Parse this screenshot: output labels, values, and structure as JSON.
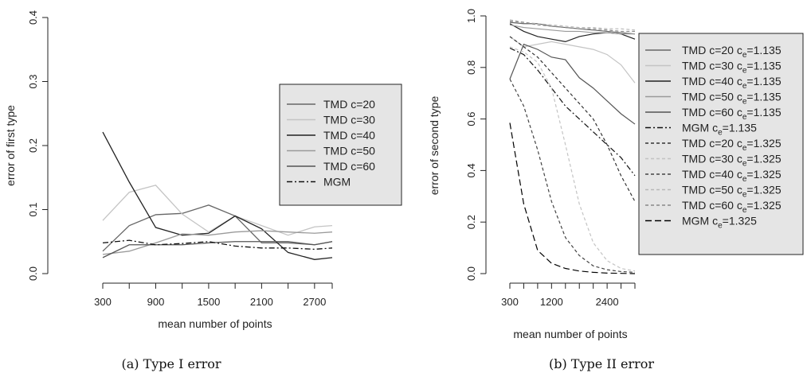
{
  "chart_data": [
    {
      "type": "line",
      "caption": "(a) Type I error",
      "title": "",
      "xlabel": "mean number of points",
      "ylabel": "error of first type",
      "xlim": [
        300,
        2900
      ],
      "ylim": [
        0,
        0.4
      ],
      "xticks": [
        300,
        600,
        900,
        1200,
        1500,
        1800,
        2100,
        2400,
        2700,
        3000
      ],
      "xtick_labels": [
        "300",
        "900",
        "1500",
        "2100",
        "2700"
      ],
      "yticks": [
        0.0,
        0.1,
        0.2,
        0.3,
        0.4
      ],
      "ytick_labels": [
        "0.0",
        "0.1",
        "0.2",
        "0.3",
        "0.4"
      ],
      "grid": false,
      "legend_position": "right",
      "x": [
        300,
        600,
        900,
        1200,
        1500,
        1800,
        2100,
        2400,
        2700,
        3000
      ],
      "series": [
        {
          "name": "TMD c=20",
          "color": "#666666",
          "dash": "",
          "values": [
            0.035,
            0.075,
            0.092,
            0.094,
            0.107,
            0.09,
            0.048,
            0.048,
            0.045,
            0.05
          ]
        },
        {
          "name": "TMD c=30",
          "color": "#c4c4c4",
          "dash": "",
          "values": [
            0.083,
            0.127,
            0.138,
            0.093,
            0.065,
            0.09,
            0.075,
            0.06,
            0.073,
            0.075
          ]
        },
        {
          "name": "TMD c=40",
          "color": "#222222",
          "dash": "",
          "values": [
            0.221,
            0.143,
            0.072,
            0.06,
            0.063,
            0.09,
            0.07,
            0.033,
            0.022,
            0.025
          ]
        },
        {
          "name": "TMD c=50",
          "color": "#9a9a9a",
          "dash": "",
          "values": [
            0.03,
            0.035,
            0.048,
            0.062,
            0.06,
            0.065,
            0.067,
            0.065,
            0.063,
            0.065
          ]
        },
        {
          "name": "TMD c=60",
          "color": "#555555",
          "dash": "",
          "values": [
            0.025,
            0.045,
            0.045,
            0.045,
            0.048,
            0.05,
            0.05,
            0.05,
            0.045,
            0.05
          ]
        },
        {
          "name": "MGM",
          "color": "#111111",
          "dash": "7,3,2,3",
          "values": [
            0.048,
            0.052,
            0.045,
            0.047,
            0.05,
            0.043,
            0.04,
            0.04,
            0.038,
            0.04
          ]
        }
      ]
    },
    {
      "type": "line",
      "caption": "(b) Type II error",
      "title": "",
      "xlabel": "mean number of points",
      "ylabel": "error of second type",
      "xlim": [
        300,
        3000
      ],
      "ylim": [
        0,
        1.0
      ],
      "xticks": [
        300,
        600,
        900,
        1200,
        1500,
        1800,
        2100,
        2400,
        2700,
        3000
      ],
      "xtick_labels": [
        "300",
        "1200",
        "2400"
      ],
      "xtick_label_values": [
        300,
        1200,
        2400
      ],
      "yticks": [
        0.0,
        0.2,
        0.4,
        0.6,
        0.8,
        1.0
      ],
      "ytick_labels": [
        "0.0",
        "0.2",
        "0.4",
        "0.6",
        "0.8",
        "1.0"
      ],
      "grid": false,
      "legend_position": "right",
      "x": [
        300,
        600,
        900,
        1200,
        1500,
        1800,
        2100,
        2400,
        2700,
        3000
      ],
      "series": [
        {
          "name_main": "TMD c=20 c",
          "name_sub": "e",
          "name_tail": "=1.135",
          "color": "#666666",
          "dash": "",
          "values": [
            0.975,
            0.97,
            0.97,
            0.96,
            0.955,
            0.95,
            0.945,
            0.94,
            0.935,
            0.93
          ]
        },
        {
          "name_main": "TMD c=30 c",
          "name_sub": "e",
          "name_tail": "=1.135",
          "color": "#c4c4c4",
          "dash": "",
          "values": [
            0.92,
            0.88,
            0.89,
            0.9,
            0.89,
            0.88,
            0.87,
            0.85,
            0.81,
            0.74
          ]
        },
        {
          "name_main": "TMD c=40 c",
          "name_sub": "e",
          "name_tail": "=1.135",
          "color": "#222222",
          "dash": "",
          "values": [
            0.97,
            0.94,
            0.92,
            0.91,
            0.9,
            0.92,
            0.93,
            0.935,
            0.93,
            0.91
          ]
        },
        {
          "name_main": "TMD c=50 c",
          "name_sub": "e",
          "name_tail": "=1.135",
          "color": "#9a9a9a",
          "dash": "",
          "values": [
            0.965,
            0.955,
            0.95,
            0.945,
            0.94,
            0.94,
            0.935,
            0.935,
            0.93,
            0.93
          ]
        },
        {
          "name_main": "TMD c=60 c",
          "name_sub": "e",
          "name_tail": "=1.135",
          "color": "#555555",
          "dash": "",
          "values": [
            0.755,
            0.89,
            0.87,
            0.84,
            0.83,
            0.76,
            0.72,
            0.67,
            0.62,
            0.58
          ]
        },
        {
          "name_main": "MGM c",
          "name_sub": "e",
          "name_tail": "=1.135",
          "color": "#111111",
          "dash": "7,3,2,3",
          "values": [
            0.875,
            0.85,
            0.79,
            0.72,
            0.65,
            0.6,
            0.55,
            0.5,
            0.45,
            0.38
          ]
        },
        {
          "name_main": "TMD c=20 c",
          "name_sub": "e",
          "name_tail": "=1.325",
          "color": "#333333",
          "dash": "4,3",
          "values": [
            0.92,
            0.88,
            0.84,
            0.78,
            0.72,
            0.66,
            0.6,
            0.5,
            0.38,
            0.28
          ]
        },
        {
          "name_main": "TMD c=30 c",
          "name_sub": "e",
          "name_tail": "=1.325",
          "color": "#c4c4c4",
          "dash": "4,3",
          "values": [
            0.88,
            0.86,
            0.82,
            0.72,
            0.5,
            0.27,
            0.12,
            0.05,
            0.02,
            0.01
          ]
        },
        {
          "name_main": "TMD c=40 c",
          "name_sub": "e",
          "name_tail": "=1.325",
          "color": "#444444",
          "dash": "4,3",
          "values": [
            0.755,
            0.65,
            0.48,
            0.28,
            0.14,
            0.07,
            0.03,
            0.015,
            0.008,
            0.005
          ]
        },
        {
          "name_main": "TMD c=50 c",
          "name_sub": "e",
          "name_tail": "=1.325",
          "color": "#b8b8b8",
          "dash": "4,3",
          "values": [
            0.985,
            0.975,
            0.97,
            0.965,
            0.96,
            0.955,
            0.955,
            0.95,
            0.95,
            0.945
          ]
        },
        {
          "name_main": "TMD c=60 c",
          "name_sub": "e",
          "name_tail": "=1.325",
          "color": "#888888",
          "dash": "4,3",
          "values": [
            0.98,
            0.975,
            0.965,
            0.96,
            0.955,
            0.95,
            0.95,
            0.945,
            0.94,
            0.94
          ]
        },
        {
          "name_main": "MGM c",
          "name_sub": "e",
          "name_tail": "=1.325",
          "color": "#000000",
          "dash": "8,4",
          "values": [
            0.585,
            0.27,
            0.09,
            0.04,
            0.02,
            0.01,
            0.005,
            0.002,
            0.001,
            0.0
          ]
        }
      ]
    }
  ]
}
